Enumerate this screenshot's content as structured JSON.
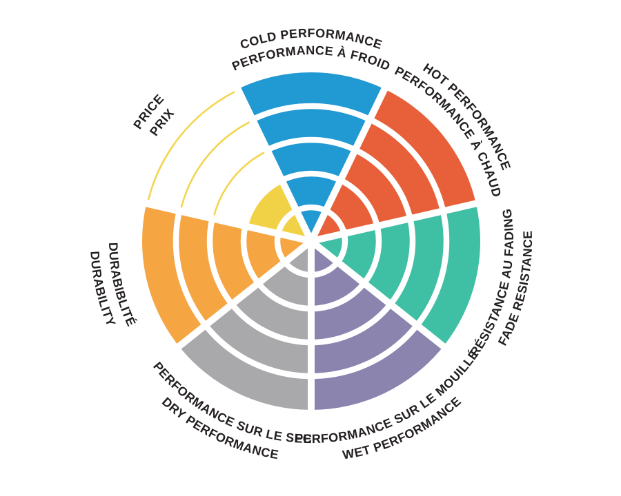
{
  "page": {
    "background_color": "#ffffff",
    "label_text_color": "#231F20"
  },
  "chart_data": {
    "type": "radial-rating",
    "description": "Seven-sector radial rating wheel, each sector scored in filled rings out of 5",
    "rings_total": 5,
    "scale": {
      "min": 0,
      "max": 5
    },
    "grid": "ring separators (white) inside filled sectors; unfilled rings drawn as thin colored outline arcs",
    "legend_position": "labels curved around wheel, English outer line / French inner line",
    "sectors": [
      {
        "id": "cold-performance",
        "label_en": "COLD PERFORMANCE",
        "label_fr": "PERFORMANCE À FROID",
        "value": 5,
        "color": "#2199D2",
        "label_orientation": "outward"
      },
      {
        "id": "hot-performance",
        "label_en": "HOT PERFORMANCE",
        "label_fr": "PERFORMANCE À CHAUD",
        "value": 5,
        "color": "#E7603A",
        "label_orientation": "outward"
      },
      {
        "id": "fade-resistance",
        "label_en": "FADE RESISTANCE",
        "label_fr": "RÉSISTANCE AU FADING",
        "value": 5,
        "color": "#3FBFA4",
        "label_orientation": "inward"
      },
      {
        "id": "wet-performance",
        "label_en": "WET PERFORMANCE",
        "label_fr": "PERFORMANCE SUR LE MOUILLÉ",
        "value": 5,
        "color": "#8A84AF",
        "label_orientation": "inward"
      },
      {
        "id": "dry-performance",
        "label_en": "DRY PERFORMANCE",
        "label_fr": "PERFORMANCE SUR LE SEC",
        "value": 5,
        "color": "#A9A9AC",
        "label_orientation": "inward"
      },
      {
        "id": "durability",
        "label_en": "DURABILITY",
        "label_fr": "DURABIBLITÉ",
        "value": 5,
        "color": "#F6A543",
        "label_orientation": "inward"
      },
      {
        "id": "price",
        "label_en": "PRICE",
        "label_fr": "PRIX",
        "value": 2,
        "color": "#F1D247",
        "outline_color": "#F3D54F",
        "label_orientation": "outward"
      }
    ]
  }
}
